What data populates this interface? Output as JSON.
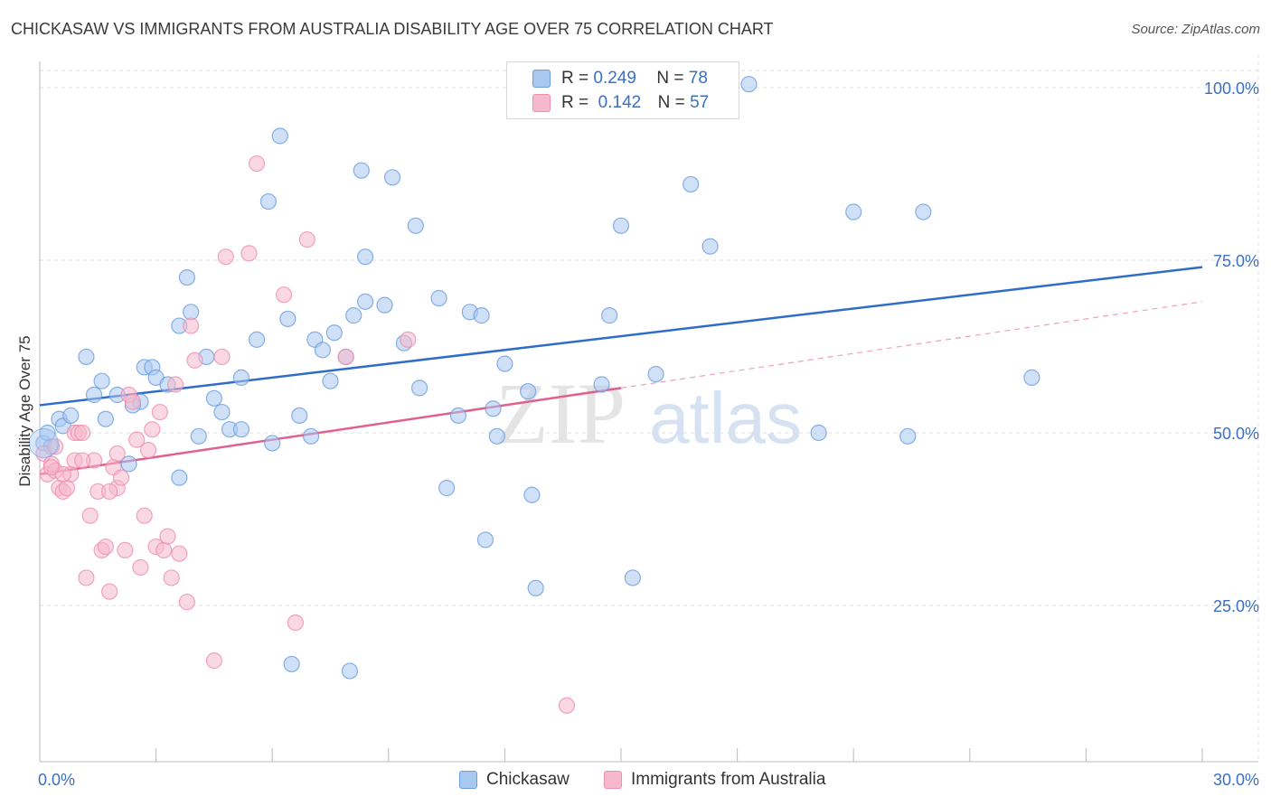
{
  "title": "CHICKASAW VS IMMIGRANTS FROM AUSTRALIA DISABILITY AGE OVER 75 CORRELATION CHART",
  "source": "Source: ZipAtlas.com",
  "watermark": {
    "part1": "ZIP",
    "part2": "atlas"
  },
  "legend": {
    "r_label": "R =",
    "n_label": "N =",
    "rows": [
      {
        "name": "Chickasaw",
        "r": "0.249",
        "n": "78",
        "color": "#a9c8f0"
      },
      {
        "name": "Immigrants from Australia",
        "r": "0.142",
        "n": "57",
        "color": "#f5b8cc"
      }
    ]
  },
  "chart_data": {
    "type": "scatter",
    "title": "CHICKASAW VS IMMIGRANTS FROM AUSTRALIA DISABILITY AGE OVER 75 CORRELATION CHART",
    "xlabel": "",
    "ylabel": "Disability Age Over 75",
    "xlim": [
      0,
      30
    ],
    "ylim": [
      0,
      105
    ],
    "x_tick_labels": [
      "0.0%",
      "30.0%"
    ],
    "y_ticks": [
      25,
      50,
      75,
      100
    ],
    "y_tick_labels": [
      "25.0%",
      "50.0%",
      "75.0%",
      "100.0%"
    ],
    "grid": true,
    "series": [
      {
        "name": "Chickasaw",
        "color": "#6a9ee0",
        "fill": "#a9c8f0",
        "line_color": "#2f6cc8",
        "trend": {
          "x": [
            0,
            30
          ],
          "y": [
            54.0,
            74.0
          ]
        },
        "points": [
          [
            0.1,
            48.5
          ],
          [
            0.3,
            48
          ],
          [
            0.5,
            52
          ],
          [
            0.6,
            51
          ],
          [
            0.8,
            52.5
          ],
          [
            1.2,
            61
          ],
          [
            1.4,
            55.5
          ],
          [
            1.6,
            57.5
          ],
          [
            1.7,
            52
          ],
          [
            2.0,
            55.5
          ],
          [
            2.3,
            45.5
          ],
          [
            2.6,
            54.5
          ],
          [
            2.7,
            59.5
          ],
          [
            2.9,
            59.5
          ],
          [
            3.0,
            58
          ],
          [
            3.3,
            57
          ],
          [
            3.6,
            43.5
          ],
          [
            3.6,
            65.5
          ],
          [
            3.8,
            72.5
          ],
          [
            3.9,
            67.5
          ],
          [
            4.1,
            49.5
          ],
          [
            4.3,
            61
          ],
          [
            4.5,
            55
          ],
          [
            4.7,
            53
          ],
          [
            4.9,
            50.5
          ],
          [
            5.2,
            50.5
          ],
          [
            5.2,
            58
          ],
          [
            5.6,
            63.5
          ],
          [
            5.9,
            83.5
          ],
          [
            6.0,
            48.5
          ],
          [
            6.2,
            93
          ],
          [
            6.4,
            66.5
          ],
          [
            6.5,
            16.5
          ],
          [
            6.7,
            52.5
          ],
          [
            7.0,
            49.5
          ],
          [
            7.1,
            63.5
          ],
          [
            7.3,
            62
          ],
          [
            7.5,
            57.5
          ],
          [
            7.6,
            64.5
          ],
          [
            7.9,
            61
          ],
          [
            8.1,
            67
          ],
          [
            8.3,
            88
          ],
          [
            8.4,
            69
          ],
          [
            8.4,
            75.5
          ],
          [
            8.9,
            68.5
          ],
          [
            9.1,
            87
          ],
          [
            9.4,
            63
          ],
          [
            9.7,
            80
          ],
          [
            9.8,
            56.5
          ],
          [
            10.3,
            69.5
          ],
          [
            10.5,
            42
          ],
          [
            10.8,
            52.5
          ],
          [
            11.1,
            67.5
          ],
          [
            11.4,
            67
          ],
          [
            11.5,
            34.5
          ],
          [
            11.7,
            53.5
          ],
          [
            11.8,
            49.5
          ],
          [
            12.0,
            60
          ],
          [
            12.6,
            56
          ],
          [
            12.7,
            41
          ],
          [
            12.8,
            27.5
          ],
          [
            14.5,
            57
          ],
          [
            14.7,
            67
          ],
          [
            15.0,
            80
          ],
          [
            15.3,
            29
          ],
          [
            15.9,
            58.5
          ],
          [
            16.8,
            86
          ],
          [
            17.3,
            77
          ],
          [
            18.3,
            100.5
          ],
          [
            20.1,
            50
          ],
          [
            21.0,
            82
          ],
          [
            22.4,
            49.5
          ],
          [
            22.8,
            82
          ],
          [
            8.0,
            15.5
          ],
          [
            25.6,
            58
          ],
          [
            17.8,
            100
          ],
          [
            2.4,
            54
          ],
          [
            0.2,
            50
          ]
        ]
      },
      {
        "name": "Immigrants from Australia",
        "color": "#ee8fae",
        "fill": "#f5b8cc",
        "line_color": "#e0608f",
        "trend": {
          "x": [
            0,
            15
          ],
          "y": [
            44.0,
            56.5
          ]
        },
        "trend_ext": {
          "x": [
            15,
            30
          ],
          "y": [
            56.5,
            69.0
          ]
        },
        "points": [
          [
            0.1,
            47
          ],
          [
            0.2,
            44
          ],
          [
            0.3,
            45.5
          ],
          [
            0.4,
            44.5
          ],
          [
            0.5,
            42
          ],
          [
            0.6,
            41.5
          ],
          [
            0.7,
            42
          ],
          [
            0.8,
            44
          ],
          [
            0.9,
            46
          ],
          [
            0.9,
            50
          ],
          [
            1.0,
            50
          ],
          [
            1.1,
            50
          ],
          [
            1.2,
            29
          ],
          [
            1.3,
            38
          ],
          [
            1.4,
            46
          ],
          [
            1.5,
            41.5
          ],
          [
            1.6,
            33
          ],
          [
            1.7,
            33.5
          ],
          [
            1.8,
            27
          ],
          [
            1.9,
            45
          ],
          [
            2.0,
            42
          ],
          [
            2.1,
            43.5
          ],
          [
            2.2,
            33
          ],
          [
            2.3,
            55.5
          ],
          [
            2.4,
            54.5
          ],
          [
            2.5,
            49
          ],
          [
            2.6,
            30.5
          ],
          [
            2.7,
            38
          ],
          [
            2.8,
            47.5
          ],
          [
            2.9,
            50.5
          ],
          [
            3.0,
            33.5
          ],
          [
            3.1,
            53
          ],
          [
            3.2,
            33
          ],
          [
            3.3,
            35
          ],
          [
            3.4,
            29
          ],
          [
            3.5,
            57
          ],
          [
            3.6,
            32.5
          ],
          [
            3.8,
            25.5
          ],
          [
            3.9,
            65.5
          ],
          [
            4.0,
            60.5
          ],
          [
            4.5,
            17
          ],
          [
            4.7,
            61
          ],
          [
            4.8,
            75.5
          ],
          [
            5.4,
            76
          ],
          [
            5.6,
            89
          ],
          [
            6.3,
            70
          ],
          [
            6.6,
            22.5
          ],
          [
            6.9,
            78
          ],
          [
            7.9,
            61
          ],
          [
            9.5,
            63.5
          ],
          [
            13.6,
            10.5
          ],
          [
            0.4,
            48
          ],
          [
            1.1,
            46
          ],
          [
            0.6,
            44
          ],
          [
            1.8,
            41.5
          ],
          [
            2.0,
            47
          ],
          [
            0.3,
            45
          ]
        ]
      }
    ]
  }
}
